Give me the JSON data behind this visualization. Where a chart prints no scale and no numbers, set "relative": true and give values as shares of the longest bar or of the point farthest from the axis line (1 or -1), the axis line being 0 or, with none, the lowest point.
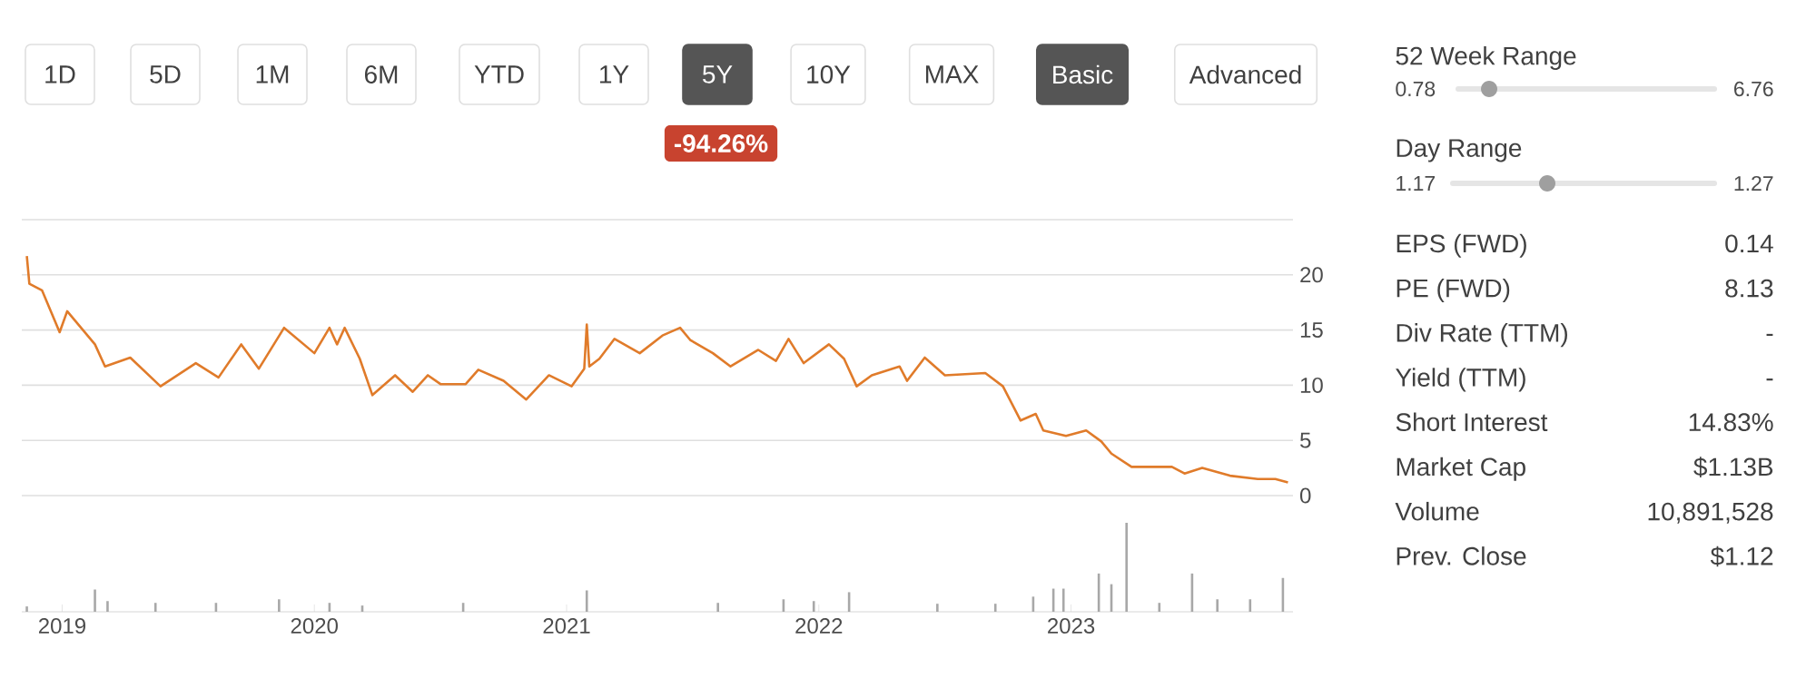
{
  "chart_data": [
    {
      "type": "line",
      "color": "#e07b2a",
      "xlim": [
        2018.84,
        2023.88
      ],
      "ylim": [
        0,
        25
      ],
      "yticks": [
        0,
        5,
        10,
        15,
        20,
        {
          "value": 25,
          "label": null
        }
      ],
      "grid": "y",
      "tick_labels": "y",
      "annotations": [
        "-94.26%"
      ],
      "x": [
        2018.86,
        2018.87,
        2018.92,
        2018.99,
        2019.02,
        2019.13,
        2019.17,
        2019.27,
        2019.39,
        2019.53,
        2019.62,
        2019.71,
        2019.78,
        2019.88,
        2020.0,
        2020.06,
        2020.09,
        2020.12,
        2020.18,
        2020.23,
        2020.32,
        2020.39,
        2020.45,
        2020.5,
        2020.6,
        2020.65,
        2020.75,
        2020.84,
        2020.93,
        2021.02,
        2021.07,
        2021.08,
        2021.09,
        2021.13,
        2021.19,
        2021.29,
        2021.38,
        2021.45,
        2021.49,
        2021.58,
        2021.65,
        2021.76,
        2021.83,
        2021.88,
        2021.94,
        2022.04,
        2022.1,
        2022.15,
        2022.21,
        2022.32,
        2022.35,
        2022.42,
        2022.5,
        2022.66,
        2022.73,
        2022.8,
        2022.86,
        2022.89,
        2022.98,
        2023.06,
        2023.12,
        2023.16,
        2023.24,
        2023.4,
        2023.45,
        2023.52,
        2023.63,
        2023.74,
        2023.81,
        2023.86
      ],
      "values": [
        21.7,
        19.2,
        18.6,
        14.8,
        16.7,
        13.7,
        11.7,
        12.5,
        9.9,
        12.0,
        10.7,
        13.7,
        11.5,
        15.2,
        12.9,
        15.2,
        13.7,
        15.2,
        12.4,
        9.1,
        10.9,
        9.4,
        10.9,
        10.1,
        10.1,
        11.4,
        10.4,
        8.7,
        10.9,
        9.9,
        11.5,
        15.5,
        11.7,
        12.4,
        14.2,
        12.9,
        14.5,
        15.2,
        14.1,
        12.9,
        11.7,
        13.2,
        12.2,
        14.2,
        12.0,
        13.7,
        12.4,
        9.9,
        10.9,
        11.7,
        10.4,
        12.5,
        10.9,
        11.1,
        9.9,
        6.8,
        7.4,
        5.9,
        5.4,
        5.9,
        4.9,
        3.8,
        2.6,
        2.6,
        2.0,
        2.5,
        1.8,
        1.5,
        1.5,
        1.2
      ]
    },
    {
      "type": "bar",
      "relative": true,
      "color": "#a8a8a8",
      "xlim": [
        2018.84,
        2023.88
      ],
      "xticks": [
        2019,
        2020,
        2021,
        2022,
        2023
      ],
      "x": [
        2018.86,
        2019.13,
        2019.18,
        2019.37,
        2019.61,
        2019.86,
        2020.06,
        2020.19,
        2020.59,
        2021.08,
        2021.6,
        2021.86,
        2021.98,
        2022.12,
        2022.47,
        2022.7,
        2022.85,
        2022.93,
        2022.97,
        2023.11,
        2023.16,
        2023.22,
        2023.35,
        2023.48,
        2023.58,
        2023.71,
        2023.84
      ],
      "values": [
        0.06,
        0.25,
        0.12,
        0.1,
        0.1,
        0.14,
        0.1,
        0.07,
        0.1,
        0.24,
        0.1,
        0.14,
        0.12,
        0.22,
        0.09,
        0.09,
        0.17,
        0.26,
        0.26,
        0.43,
        0.31,
        1.0,
        0.1,
        0.43,
        0.14,
        0.14,
        0.38
      ]
    },
    {
      "type": "other",
      "annotations": [
        "1D",
        "5D",
        "1M",
        "6M",
        "YTD",
        "1Y",
        "5Y",
        "10Y",
        "MAX",
        "Basic",
        "Advanced"
      ]
    },
    {
      "type": "other",
      "annotations": [
        "52 Week Range",
        "0.78",
        "6.76",
        "Day Range",
        "1.17",
        "1.27",
        "EPS (FWD)",
        "0.14",
        "PE (FWD)",
        "8.13",
        "Div Rate (TTM)",
        "-",
        "Yield (TTM)",
        "-",
        "Short Interest",
        "14.83%",
        "Market Cap",
        "$1.13B",
        "Volume",
        "10,891,528",
        "Prev. Close",
        "$1.12"
      ]
    }
  ]
}
